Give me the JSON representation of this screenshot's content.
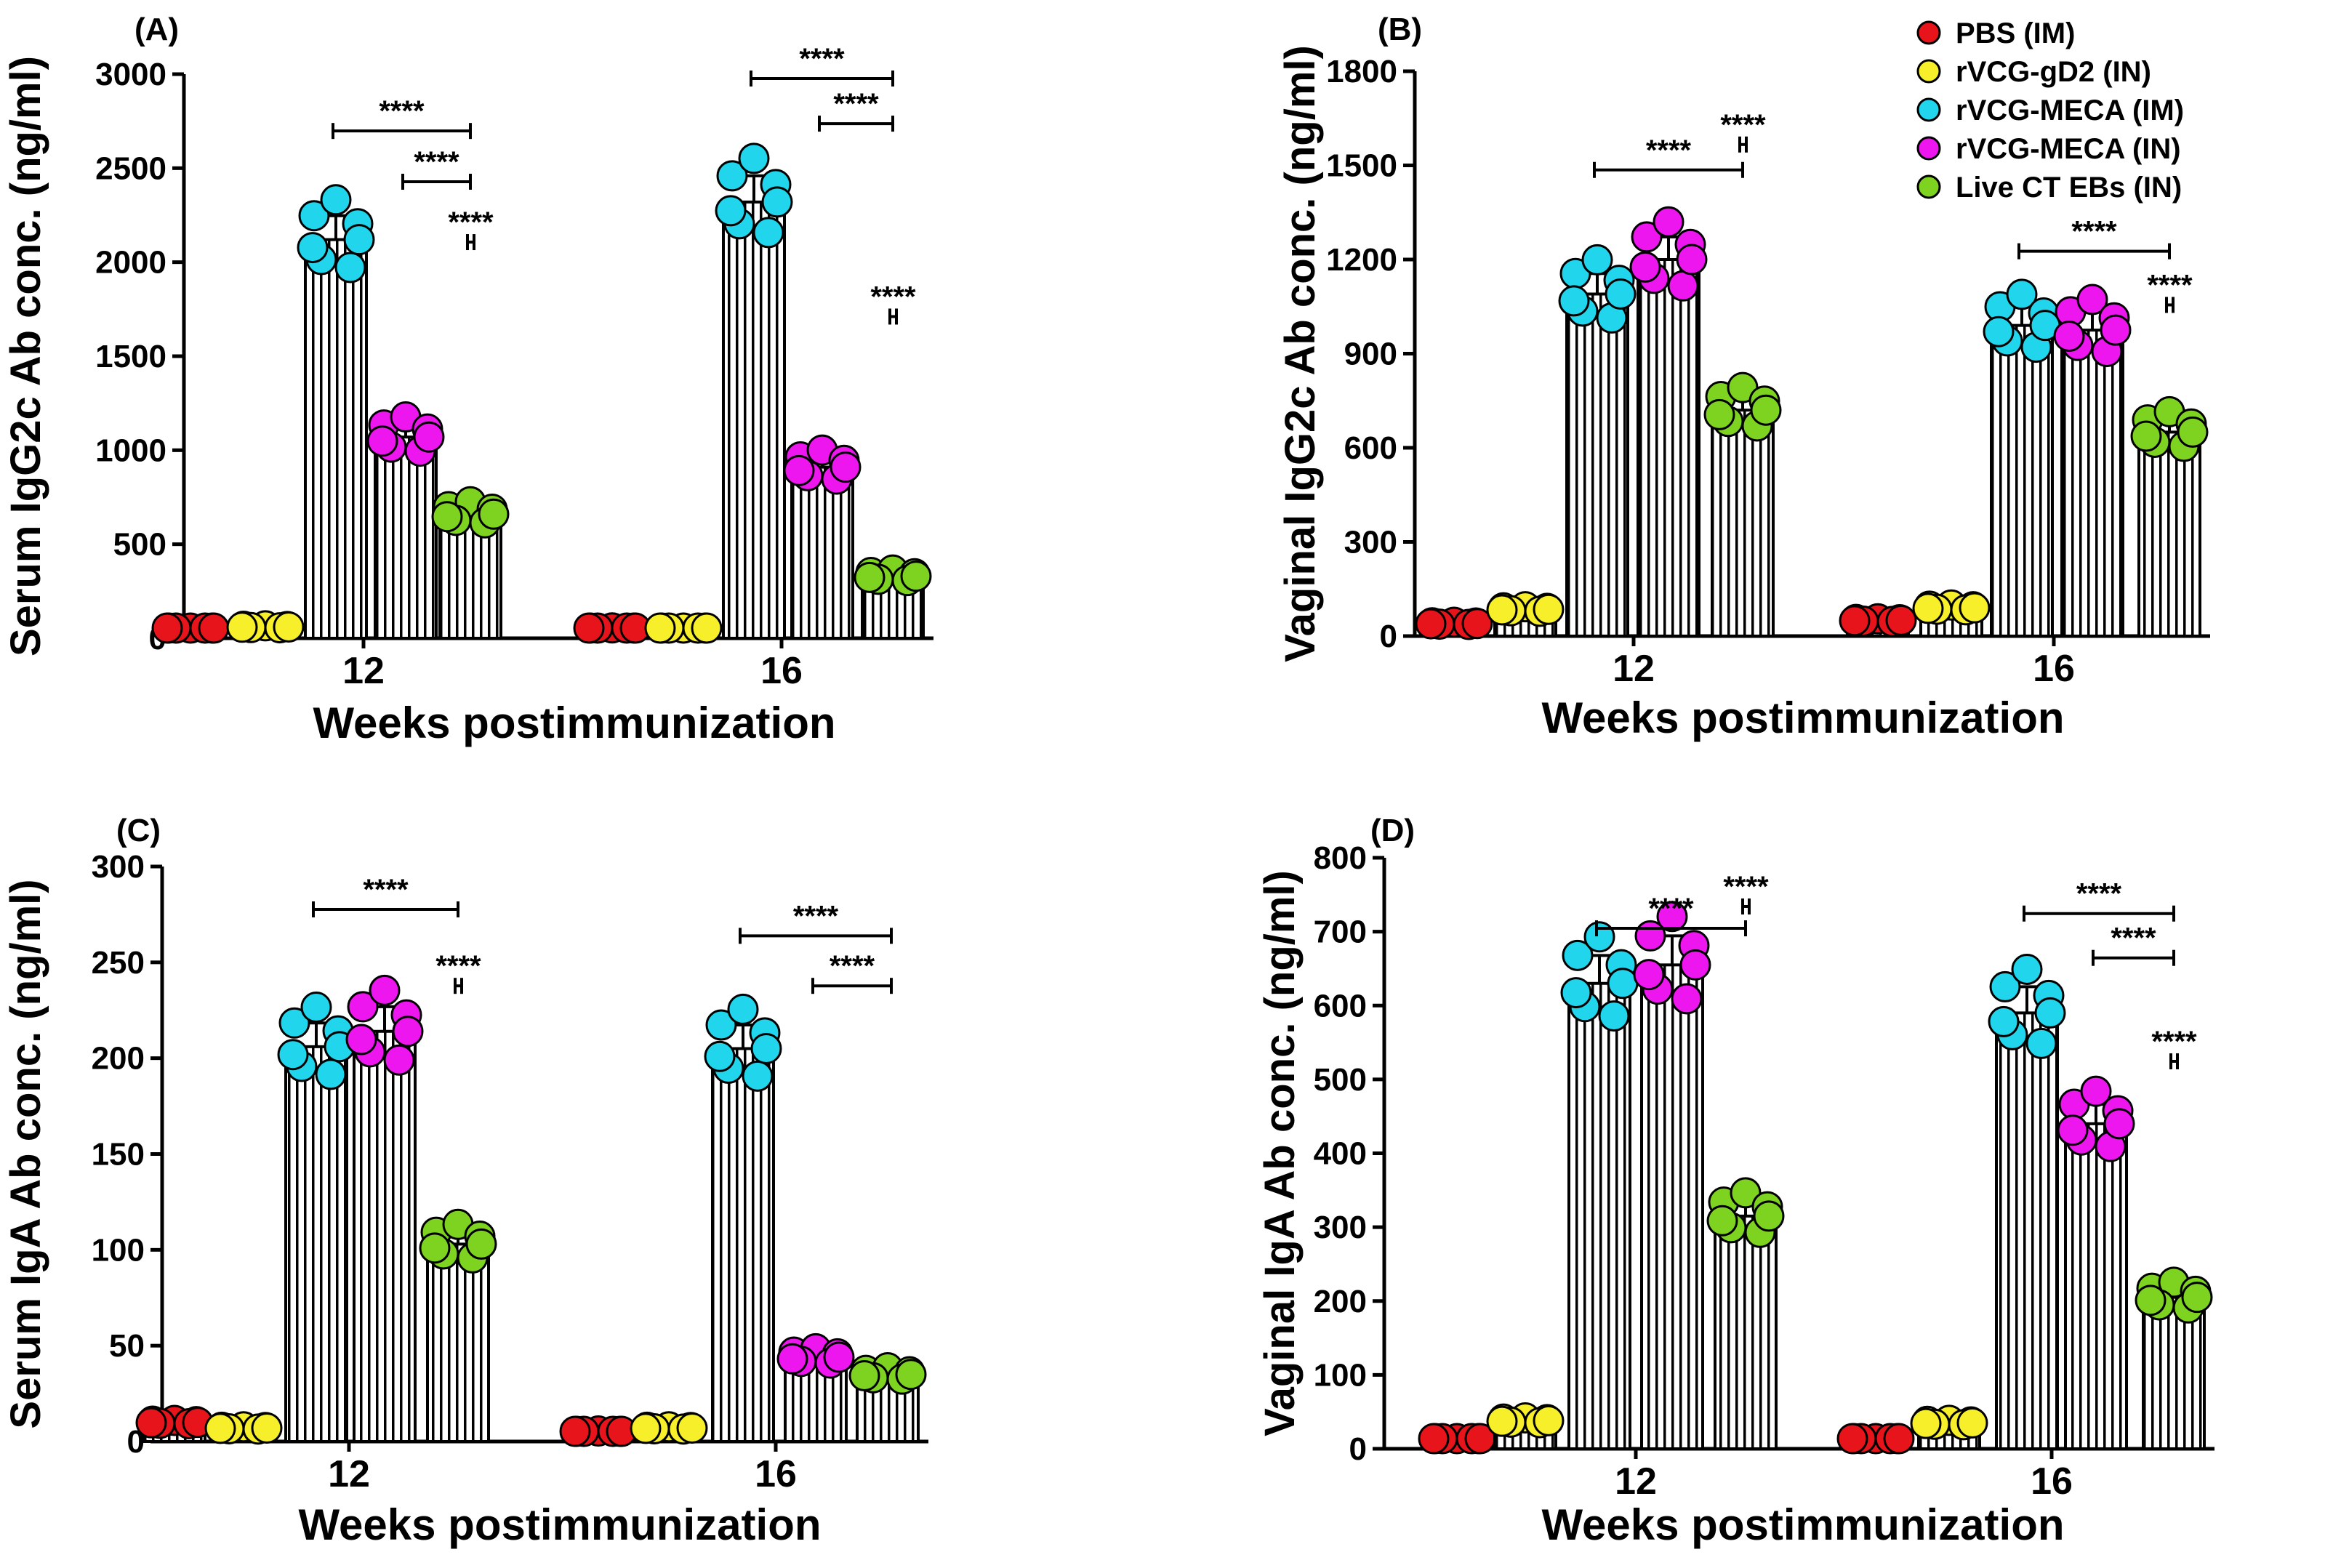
{
  "legend": [
    {
      "name": "PBS (IM)",
      "color": "#e8141b"
    },
    {
      "name": "rVCG-gD2 (IN)",
      "color": "#f6ef2a"
    },
    {
      "name": "rVCG-MECA (IM)",
      "color": "#21d6ec"
    },
    {
      "name": "rVCG-MECA (IN)",
      "color": "#ee16ee"
    },
    {
      "name": "Live CT EBs (IN)",
      "color": "#7ed321"
    }
  ],
  "chart_data": [
    {
      "type": "bar",
      "panel_label": "(A)",
      "categories": [
        "12",
        "16"
      ],
      "xlabel": "Weeks postimmunization",
      "ylabel": "Serum IgG2c Ab conc. (ng/ml)",
      "ylim": [
        0,
        3000
      ],
      "yticks": [
        "0",
        "500",
        "1000",
        "1500",
        "2000",
        "2500",
        "3000"
      ],
      "series": [
        {
          "name": "PBS (IM)",
          "values": [
            10,
            50
          ]
        },
        {
          "name": "rVCG-gD2 (IN)",
          "values": [
            60,
            40
          ]
        },
        {
          "name": "rVCG-MECA (IM)",
          "values": [
            2120,
            2320
          ]
        },
        {
          "name": "rVCG-MECA (IN)",
          "values": [
            1070,
            910
          ]
        },
        {
          "name": "Live CT EBs (IN)",
          "values": [
            660,
            330
          ]
        }
      ],
      "significance": [
        {
          "label": "****",
          "group": 0,
          "from": 2,
          "to": 4,
          "level": 0.907
        },
        {
          "label": "****",
          "group": 0,
          "from": 3,
          "to": 4,
          "level": 0.817
        },
        {
          "label": "****",
          "group": 0,
          "from": 4,
          "to": 5,
          "level": 0.71
        },
        {
          "label": "****",
          "group": 1,
          "from": 2,
          "to": 4,
          "level": 1.0
        },
        {
          "label": "****",
          "group": 1,
          "from": 3,
          "to": 4,
          "level": 0.92
        },
        {
          "label": "****",
          "group": 1,
          "from": 4,
          "to": 5,
          "level": 0.578
        }
      ]
    },
    {
      "type": "bar",
      "panel_label": "(B)",
      "categories": [
        "12",
        "16"
      ],
      "xlabel": "Weeks postimmunization",
      "ylabel": "Vaginal IgG2c Ab conc. (ng/ml)",
      "ylim": [
        0,
        1800
      ],
      "yticks": [
        "0",
        "300",
        "600",
        "900",
        "1200",
        "1500",
        "1800"
      ],
      "series": [
        {
          "name": "PBS (IM)",
          "values": [
            40,
            50
          ]
        },
        {
          "name": "rVCG-gD2 (IN)",
          "values": [
            85,
            90
          ]
        },
        {
          "name": "rVCG-MECA (IM)",
          "values": [
            1090,
            990
          ]
        },
        {
          "name": "rVCG-MECA (IN)",
          "values": [
            1200,
            975
          ]
        },
        {
          "name": "Live CT EBs (IN)",
          "values": [
            720,
            650
          ]
        }
      ],
      "significance": [
        {
          "label": "****",
          "group": 0,
          "from": 2,
          "to": 4,
          "level": 0.833
        },
        {
          "label": "****",
          "group": 0,
          "from": 4,
          "to": 5,
          "level": 0.878
        },
        {
          "label": "****",
          "group": 1,
          "from": 2,
          "to": 4,
          "level": 0.689
        },
        {
          "label": "****",
          "group": 1,
          "from": 4,
          "to": 5,
          "level": 0.594
        }
      ]
    },
    {
      "type": "bar",
      "panel_label": "(C)",
      "categories": [
        "12",
        "16"
      ],
      "xlabel": "Weeks postimmunization",
      "ylabel": "Serum IgA Ab conc. (ng/ml)",
      "ylim": [
        0,
        300
      ],
      "yticks": [
        "0",
        "50",
        "100",
        "150",
        "200",
        "250",
        "300"
      ],
      "series": [
        {
          "name": "PBS (IM)",
          "values": [
            10,
            5
          ]
        },
        {
          "name": "rVCG-gD2 (IN)",
          "values": [
            7,
            7
          ]
        },
        {
          "name": "rVCG-MECA (IM)",
          "values": [
            206,
            205
          ]
        },
        {
          "name": "rVCG-MECA (IN)",
          "values": [
            214,
            44
          ]
        },
        {
          "name": "Live CT EBs (IN)",
          "values": [
            103,
            35
          ]
        }
      ],
      "significance": [
        {
          "label": "****",
          "group": 0,
          "from": 2,
          "to": 4,
          "level": 0.933
        },
        {
          "label": "****",
          "group": 0,
          "from": 4,
          "to": 5,
          "level": 0.8
        },
        {
          "label": "****",
          "group": 1,
          "from": 2,
          "to": 5,
          "level": 0.887
        },
        {
          "label": "****",
          "group": 1,
          "from": 3,
          "to": 5,
          "level": 0.8
        }
      ]
    },
    {
      "type": "bar",
      "panel_label": "(D)",
      "categories": [
        "12",
        "16"
      ],
      "xlabel": "Weeks postimmunization",
      "ylabel": "Vaginal IgA Ab conc. (ng/ml)",
      "ylim": [
        0,
        800
      ],
      "yticks": [
        "0",
        "100",
        "200",
        "300",
        "400",
        "500",
        "600",
        "700",
        "800"
      ],
      "series": [
        {
          "name": "PBS (IM)",
          "values": [
            12,
            12
          ]
        },
        {
          "name": "rVCG-gD2 (IN)",
          "values": [
            38,
            35
          ]
        },
        {
          "name": "rVCG-MECA (IM)",
          "values": [
            630,
            590
          ]
        },
        {
          "name": "rVCG-MECA (IN)",
          "values": [
            655,
            440
          ]
        },
        {
          "name": "Live CT EBs (IN)",
          "values": [
            315,
            205
          ]
        }
      ],
      "significance": [
        {
          "label": "****",
          "group": 0,
          "from": 2,
          "to": 4,
          "level": 0.888
        },
        {
          "label": "****",
          "group": 0,
          "from": 4,
          "to": 5,
          "level": 0.925
        },
        {
          "label": "****",
          "group": 1,
          "from": 2,
          "to": 4,
          "level": 0.913
        },
        {
          "label": "****",
          "group": 1,
          "from": 3,
          "to": 4,
          "level": 0.838
        },
        {
          "label": "****",
          "group": 1,
          "from": 4,
          "to": 5,
          "level": 0.663
        }
      ]
    }
  ]
}
